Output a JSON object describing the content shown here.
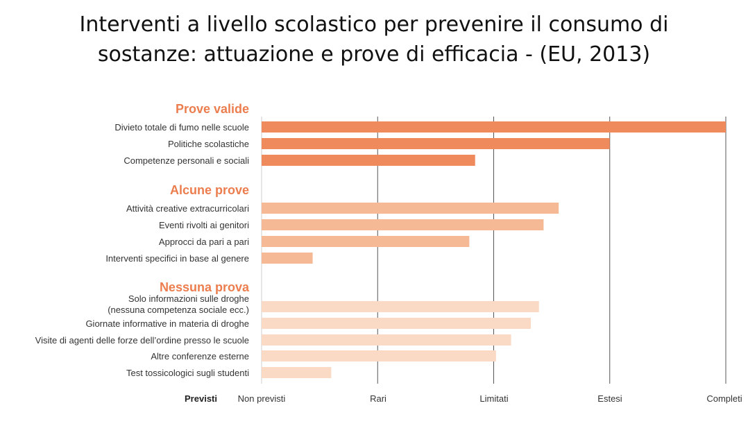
{
  "title_lines": [
    "Interventi a livello scolastico per prevenire il consumo di",
    "sostanze: attuazione e prove di efficacia  - (EU, 2013)"
  ],
  "colors": {
    "strong": "#ef8a5d",
    "medium": "#f6b996",
    "light": "#fad9c5",
    "heading": "#ec7d4e",
    "gridline": "#555555",
    "label": "#333333"
  },
  "chart_data": {
    "type": "bar",
    "orientation": "horizontal",
    "title": "Interventi a livello scolastico per prevenire il consumo di sostanze: attuazione e prove di efficacia  - (EU, 2013)",
    "x_axis_title": "Previsti",
    "x_ticks": [
      "Non previsti",
      "Rari",
      "Limitati",
      "Estesi",
      "Completi"
    ],
    "xlim": [
      0,
      4
    ],
    "grid": true,
    "groups": [
      {
        "heading": "Prove valide",
        "shade": "strong",
        "items": [
          {
            "label": [
              "Divieto totale di fumo nelle scuole"
            ],
            "value": 4.0
          },
          {
            "label": [
              "Politiche scolastiche"
            ],
            "value": 3.0
          },
          {
            "label": [
              "Competenze personali e sociali"
            ],
            "value": 1.84
          }
        ]
      },
      {
        "heading": "Alcune prove",
        "shade": "medium",
        "items": [
          {
            "label": [
              "Attività creative extracurricolari"
            ],
            "value": 2.56
          },
          {
            "label": [
              "Eventi rivolti ai genitori"
            ],
            "value": 2.43
          },
          {
            "label": [
              "Approcci da pari a pari"
            ],
            "value": 1.79
          },
          {
            "label": [
              "Interventi specifici in base al genere"
            ],
            "value": 0.44
          }
        ]
      },
      {
        "heading": "Nessuna prova",
        "shade": "light",
        "items": [
          {
            "label": [
              "Solo informazioni sulle droghe",
              "(nessuna competenza sociale ecc.)"
            ],
            "value": 2.39
          },
          {
            "label": [
              "Giornate informative in materia di droghe"
            ],
            "value": 2.32
          },
          {
            "label": [
              "Visite di agenti delle forze dell’ordine presso le scuole"
            ],
            "value": 2.15
          },
          {
            "label": [
              "Altre conferenze esterne"
            ],
            "value": 2.02
          },
          {
            "label": [
              "Test tossicologici sugli studenti"
            ],
            "value": 0.6
          }
        ]
      }
    ]
  }
}
